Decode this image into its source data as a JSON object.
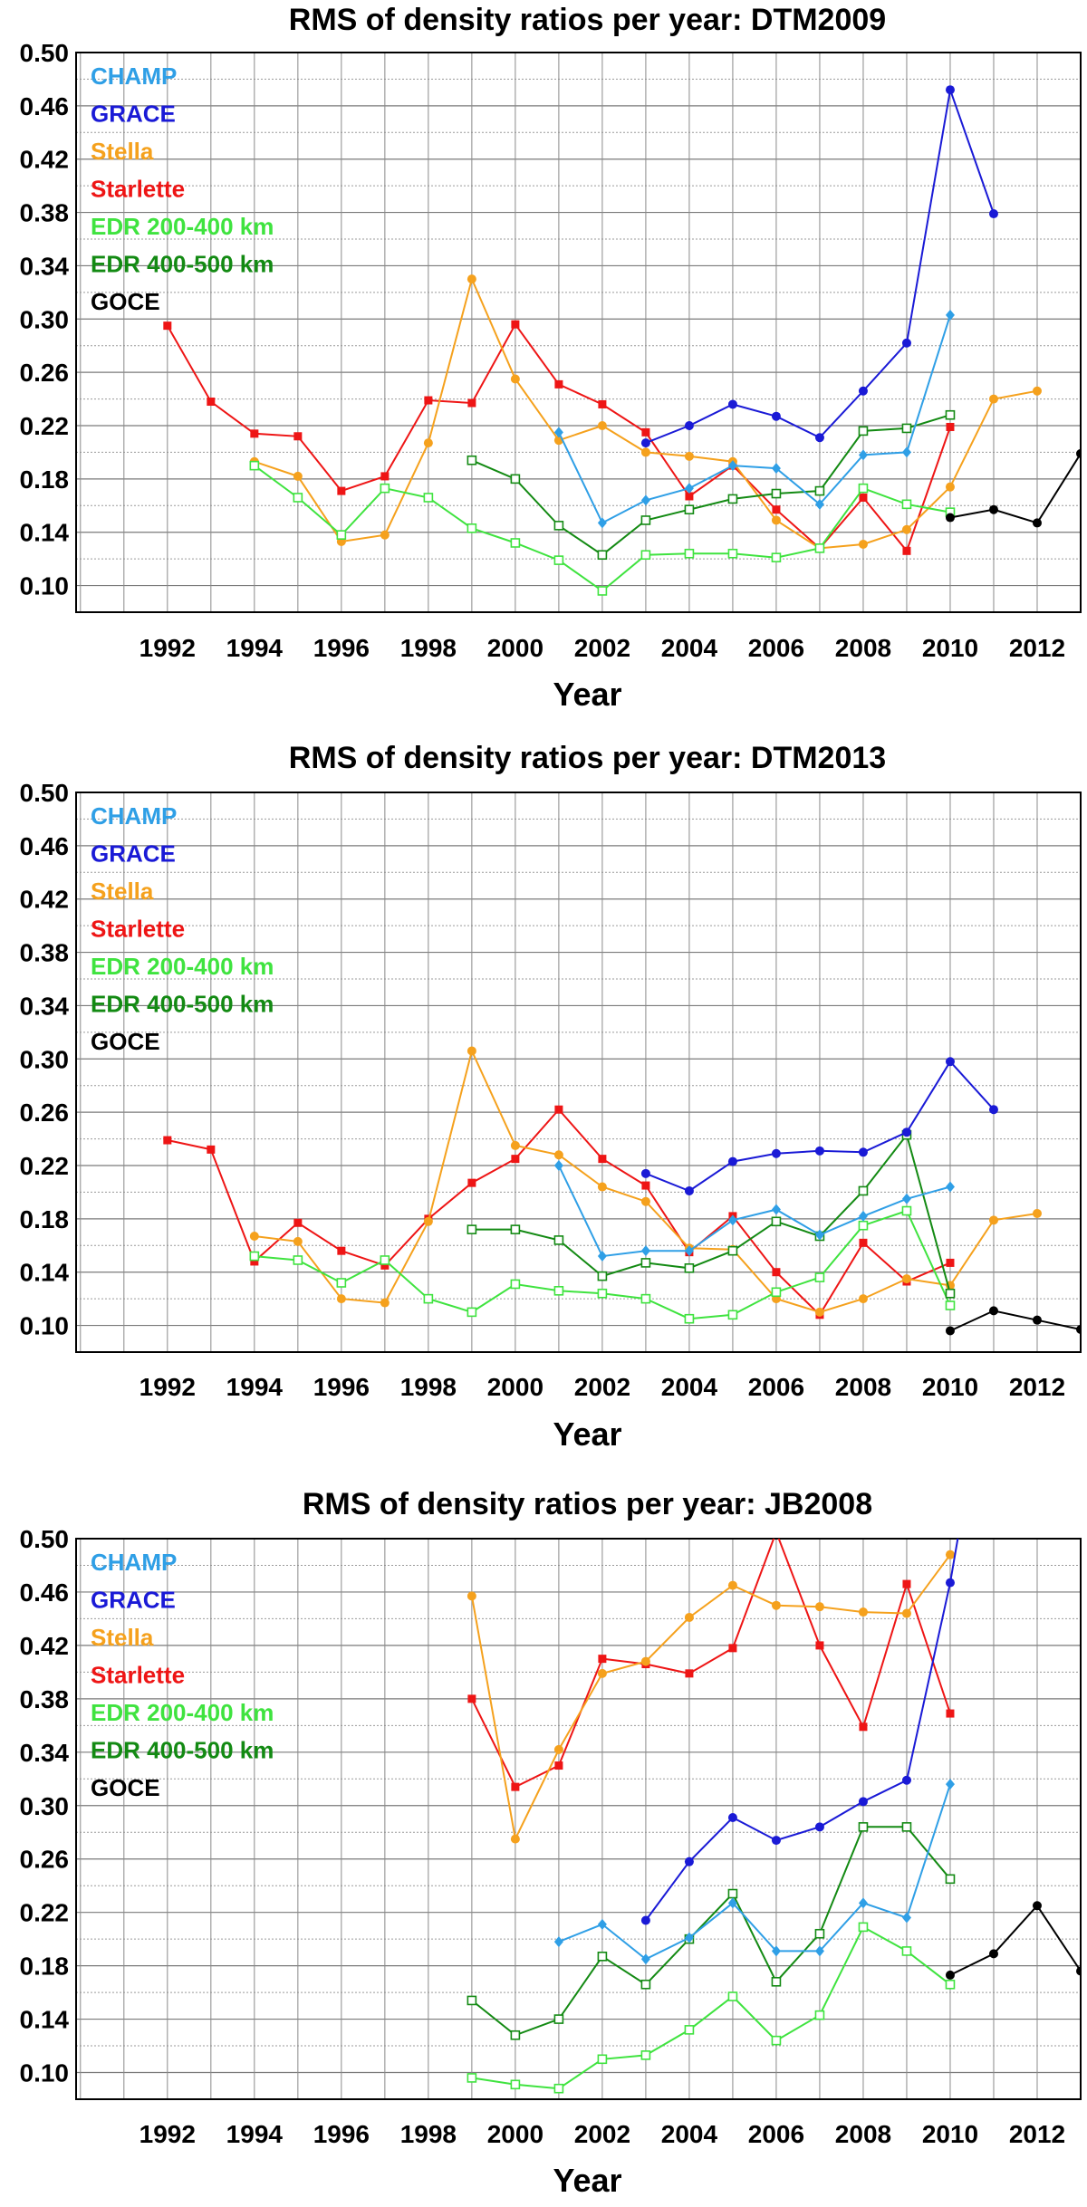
{
  "colors": {
    "CHAMP": "#2f9fe6",
    "GRACE": "#1a1ad6",
    "Stella": "#f5a11d",
    "Starlette": "#ee1515",
    "EDR 200-400 km": "#3fe33f",
    "EDR 400-500 km": "#138a13",
    "GOCE": "#000000"
  },
  "markers": {
    "CHAMP": "diamond",
    "GRACE": "circle",
    "Stella": "circle",
    "Starlette": "square",
    "EDR 200-400 km": "open-square",
    "EDR 400-500 km": "open-square",
    "GOCE": "circle"
  },
  "chart_data": [
    {
      "type": "line",
      "title": "RMS of density ratios per year: DTM2009",
      "xlabel": "Year",
      "ylabel": "",
      "xlim": [
        1989.9,
        2013
      ],
      "ylim": [
        0.08,
        0.5
      ],
      "xticks": [
        "1992",
        "1994",
        "1996",
        "1998",
        "2000",
        "2002",
        "2004",
        "2006",
        "2008",
        "2010",
        "2012"
      ],
      "yticks": [
        "0.50",
        "0.46",
        "0.42",
        "0.38",
        "0.34",
        "0.30",
        "0.26",
        "0.22",
        "0.18",
        "0.14",
        "0.10"
      ],
      "grid": true,
      "legend_position": "top-left",
      "series": [
        {
          "name": "Starlette",
          "x": [
            1992,
            1993,
            1994,
            1995,
            1996,
            1997,
            1998,
            1999,
            2000,
            2001,
            2002,
            2003,
            2004,
            2005,
            2006,
            2007,
            2008,
            2009,
            2010
          ],
          "y": [
            0.295,
            0.238,
            0.214,
            0.212,
            0.171,
            0.182,
            0.239,
            0.237,
            0.296,
            0.251,
            0.236,
            0.215,
            0.167,
            0.19,
            0.157,
            0.128,
            0.166,
            0.126,
            0.219
          ]
        },
        {
          "name": "Stella",
          "x": [
            1994,
            1995,
            1996,
            1997,
            1998,
            1999,
            2000,
            2001,
            2002,
            2003,
            2004,
            2005,
            2006,
            2007,
            2008,
            2009,
            2010,
            2011,
            2012
          ],
          "y": [
            0.193,
            0.182,
            0.133,
            0.138,
            0.207,
            0.33,
            0.255,
            0.209,
            0.22,
            0.2,
            0.197,
            0.193,
            0.149,
            0.128,
            0.131,
            0.142,
            0.174,
            0.24,
            0.246
          ]
        },
        {
          "name": "EDR 200-400 km",
          "x": [
            1994,
            1995,
            1996,
            1997,
            1998,
            1999,
            2000,
            2001,
            2002,
            2003,
            2004,
            2005,
            2006,
            2007,
            2008,
            2009,
            2010
          ],
          "y": [
            0.19,
            0.166,
            0.138,
            0.173,
            0.166,
            0.143,
            0.132,
            0.119,
            0.096,
            0.123,
            0.124,
            0.124,
            0.121,
            0.128,
            0.173,
            0.161,
            0.155
          ]
        },
        {
          "name": "EDR 400-500 km",
          "x": [
            1999,
            2000,
            2001,
            2002,
            2003,
            2004,
            2005,
            2006,
            2007,
            2008,
            2009,
            2010
          ],
          "y": [
            0.194,
            0.18,
            0.145,
            0.123,
            0.149,
            0.157,
            0.165,
            0.169,
            0.171,
            0.216,
            0.218,
            0.228
          ]
        },
        {
          "name": "CHAMP",
          "x": [
            2001,
            2002,
            2003,
            2004,
            2005,
            2006,
            2007,
            2008,
            2009,
            2010
          ],
          "y": [
            0.215,
            0.147,
            0.164,
            0.173,
            0.19,
            0.188,
            0.161,
            0.198,
            0.2,
            0.303
          ]
        },
        {
          "name": "GRACE",
          "x": [
            2003,
            2004,
            2005,
            2006,
            2007,
            2008,
            2009,
            2010,
            2011
          ],
          "y": [
            0.207,
            0.22,
            0.236,
            0.227,
            0.211,
            0.246,
            0.282,
            0.472,
            0.379
          ]
        },
        {
          "name": "GOCE",
          "x": [
            2010,
            2011,
            2012,
            2013
          ],
          "y": [
            0.151,
            0.157,
            0.147,
            0.199
          ]
        }
      ]
    },
    {
      "type": "line",
      "title": "RMS of density ratios per year: DTM2013",
      "xlabel": "Year",
      "ylabel": "",
      "xlim": [
        1989.9,
        2013
      ],
      "ylim": [
        0.08,
        0.5
      ],
      "xticks": [
        "1992",
        "1994",
        "1996",
        "1998",
        "2000",
        "2002",
        "2004",
        "2006",
        "2008",
        "2010",
        "2012"
      ],
      "yticks": [
        "0.50",
        "0.46",
        "0.42",
        "0.38",
        "0.34",
        "0.30",
        "0.26",
        "0.22",
        "0.18",
        "0.14",
        "0.10"
      ],
      "grid": true,
      "legend_position": "top-left",
      "series": [
        {
          "name": "Starlette",
          "x": [
            1992,
            1993,
            1994,
            1995,
            1996,
            1997,
            1998,
            1999,
            2000,
            2001,
            2002,
            2003,
            2004,
            2005,
            2006,
            2007,
            2008,
            2009,
            2010
          ],
          "y": [
            0.239,
            0.232,
            0.148,
            0.177,
            0.156,
            0.145,
            0.18,
            0.207,
            0.225,
            0.262,
            0.225,
            0.205,
            0.155,
            0.182,
            0.14,
            0.108,
            0.162,
            0.133,
            0.147
          ]
        },
        {
          "name": "Stella",
          "x": [
            1994,
            1995,
            1996,
            1997,
            1998,
            1999,
            2000,
            2001,
            2002,
            2003,
            2004,
            2005,
            2006,
            2007,
            2008,
            2009,
            2010,
            2011,
            2012
          ],
          "y": [
            0.167,
            0.163,
            0.12,
            0.117,
            0.178,
            0.306,
            0.235,
            0.228,
            0.204,
            0.193,
            0.158,
            0.157,
            0.12,
            0.11,
            0.12,
            0.135,
            0.13,
            0.179,
            0.184
          ]
        },
        {
          "name": "EDR 200-400 km",
          "x": [
            1994,
            1995,
            1996,
            1997,
            1998,
            1999,
            2000,
            2001,
            2002,
            2003,
            2004,
            2005,
            2006,
            2007,
            2008,
            2009,
            2010
          ],
          "y": [
            0.152,
            0.149,
            0.132,
            0.149,
            0.12,
            0.11,
            0.131,
            0.126,
            0.124,
            0.12,
            0.105,
            0.108,
            0.125,
            0.136,
            0.175,
            0.186,
            0.115
          ]
        },
        {
          "name": "EDR 400-500 km",
          "x": [
            1999,
            2000,
            2001,
            2002,
            2003,
            2004,
            2005,
            2006,
            2007,
            2008,
            2009,
            2010
          ],
          "y": [
            0.172,
            0.172,
            0.164,
            0.137,
            0.147,
            0.143,
            0.156,
            0.178,
            0.167,
            0.201,
            0.243,
            0.124
          ]
        },
        {
          "name": "CHAMP",
          "x": [
            2001,
            2002,
            2003,
            2004,
            2005,
            2006,
            2007,
            2008,
            2009,
            2010
          ],
          "y": [
            0.22,
            0.152,
            0.156,
            0.156,
            0.179,
            0.187,
            0.168,
            0.182,
            0.195,
            0.204
          ]
        },
        {
          "name": "GRACE",
          "x": [
            2003,
            2004,
            2005,
            2006,
            2007,
            2008,
            2009,
            2010,
            2011
          ],
          "y": [
            0.214,
            0.201,
            0.223,
            0.229,
            0.231,
            0.23,
            0.245,
            0.298,
            0.262
          ]
        },
        {
          "name": "GOCE",
          "x": [
            2010,
            2011,
            2012,
            2013
          ],
          "y": [
            0.096,
            0.111,
            0.104,
            0.097
          ]
        }
      ]
    },
    {
      "type": "line",
      "title": "RMS of density ratios per year: JB2008",
      "xlabel": "Year",
      "ylabel": "",
      "xlim": [
        1989.9,
        2013
      ],
      "ylim": [
        0.08,
        0.5
      ],
      "xticks": [
        "1992",
        "1994",
        "1996",
        "1998",
        "2000",
        "2002",
        "2004",
        "2006",
        "2008",
        "2010",
        "2012"
      ],
      "yticks": [
        "0.50",
        "0.46",
        "0.42",
        "0.38",
        "0.34",
        "0.30",
        "0.26",
        "0.22",
        "0.18",
        "0.14",
        "0.10"
      ],
      "grid": true,
      "legend_position": "top-left",
      "series": [
        {
          "name": "Starlette",
          "x": [
            1999,
            2000,
            2001,
            2002,
            2003,
            2004,
            2005,
            2006,
            2007,
            2008,
            2009,
            2010
          ],
          "y": [
            0.38,
            0.314,
            0.33,
            0.41,
            0.406,
            0.399,
            0.418,
            0.505,
            0.42,
            0.359,
            0.466,
            0.369
          ]
        },
        {
          "name": "Stella",
          "x": [
            1999,
            2000,
            2001,
            2002,
            2003,
            2004,
            2005,
            2006,
            2007,
            2008,
            2009,
            2010
          ],
          "y": [
            0.457,
            0.275,
            0.342,
            0.399,
            0.408,
            0.441,
            0.465,
            0.45,
            0.449,
            0.445,
            0.444,
            0.488
          ]
        },
        {
          "name": "EDR 200-400 km",
          "x": [
            1999,
            2000,
            2001,
            2002,
            2003,
            2004,
            2005,
            2006,
            2007,
            2008,
            2009,
            2010
          ],
          "y": [
            0.096,
            0.091,
            0.088,
            0.11,
            0.113,
            0.132,
            0.157,
            0.124,
            0.143,
            0.209,
            0.191,
            0.166
          ]
        },
        {
          "name": "EDR 400-500 km",
          "x": [
            1999,
            2000,
            2001,
            2002,
            2003,
            2004,
            2005,
            2006,
            2007,
            2008,
            2009,
            2010
          ],
          "y": [
            0.154,
            0.128,
            0.14,
            0.187,
            0.166,
            0.2,
            0.234,
            0.168,
            0.204,
            0.284,
            0.284,
            0.245
          ]
        },
        {
          "name": "CHAMP",
          "x": [
            2001,
            2002,
            2003,
            2004,
            2005,
            2006,
            2007,
            2008,
            2009,
            2010
          ],
          "y": [
            0.198,
            0.211,
            0.185,
            0.201,
            0.227,
            0.191,
            0.191,
            0.227,
            0.216,
            0.316
          ]
        },
        {
          "name": "GRACE",
          "x": [
            2003,
            2004,
            2005,
            2006,
            2007,
            2008,
            2009,
            2010,
            2010.2
          ],
          "y": [
            0.214,
            0.258,
            0.291,
            0.274,
            0.284,
            0.303,
            0.319,
            0.467,
            0.505
          ]
        },
        {
          "name": "GOCE",
          "x": [
            2010,
            2011,
            2012,
            2013
          ],
          "y": [
            0.173,
            0.189,
            0.225,
            0.176
          ]
        }
      ]
    }
  ]
}
